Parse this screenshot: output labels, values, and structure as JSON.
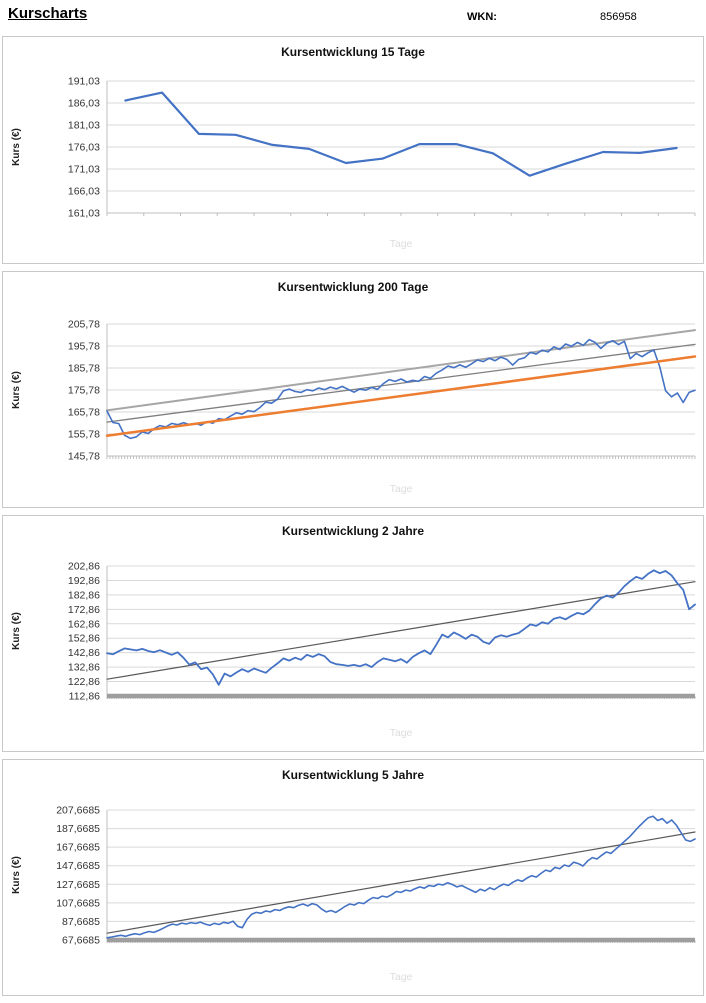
{
  "header": {
    "title": "Kurscharts",
    "wkn_label": "WKN:",
    "wkn_value": "856958"
  },
  "theme": {
    "accent_blue": "#4472C4",
    "trend_orange": "#ED7D31",
    "trend_gray": "#A6A6A6",
    "trend_dark": "#7F7F7F",
    "trendline_dark": "#595959",
    "grid": "#D9D9D9",
    "axis": "#BFBFBF",
    "baseline_gray": "#9E9E9E",
    "watermark": "#DCDCDC"
  },
  "chart_data": [
    {
      "type": "line",
      "title": "Kursentwicklung 15 Tage",
      "xlabel": "Tage",
      "ylabel": "Kurs (€)",
      "ylim": [
        161.03,
        191.03
      ],
      "grid": true,
      "legend": null,
      "y_ticks": [
        {
          "label": "191,03",
          "value": 191.03
        },
        {
          "label": "186,03",
          "value": 186.03
        },
        {
          "label": "181,03",
          "value": 181.03
        },
        {
          "label": "176,03",
          "value": 176.03
        },
        {
          "label": "171,03",
          "value": 171.03
        },
        {
          "label": "166,03",
          "value": 166.03
        },
        {
          "label": "161,03",
          "value": 161.03
        }
      ],
      "x_tick_count": 16,
      "baseline": null,
      "series": [
        {
          "name": "kurs",
          "color": "#4472C4",
          "width": 2.2,
          "centered": true,
          "values": [
            186.6,
            188.4,
            179.0,
            178.8,
            176.5,
            175.6,
            172.4,
            173.4,
            176.7,
            176.7,
            174.6,
            169.5,
            172.3,
            174.9,
            174.7,
            175.8
          ]
        }
      ]
    },
    {
      "type": "line",
      "title": "Kursentwicklung 200 Tage",
      "xlabel": "Tage",
      "ylabel": "Kurs (€)",
      "ylim": [
        145.78,
        205.78
      ],
      "grid": true,
      "legend": null,
      "y_ticks": [
        {
          "label": "205,78",
          "value": 205.78
        },
        {
          "label": "195,78",
          "value": 195.78
        },
        {
          "label": "185,78",
          "value": 185.78
        },
        {
          "label": "175,78",
          "value": 175.78
        },
        {
          "label": "165,78",
          "value": 165.78
        },
        {
          "label": "155,78",
          "value": 155.78
        },
        {
          "label": "145,78",
          "value": 145.78
        }
      ],
      "x_tick_count": 200,
      "baseline": null,
      "series": [
        {
          "name": "trend-oben",
          "color": "#A6A6A6",
          "width": 2,
          "centered": false,
          "values": [
            166.5,
            203.0
          ]
        },
        {
          "name": "trend-mitte",
          "color": "#7F7F7F",
          "width": 1.3,
          "centered": false,
          "values": [
            161.2,
            196.5
          ]
        },
        {
          "name": "kurs",
          "color": "#4472C4",
          "width": 1.6,
          "centered": false,
          "values": [
            166.2,
            161.0,
            160.5,
            155.2,
            153.8,
            154.5,
            156.8,
            156.0,
            158.2,
            159.6,
            159.0,
            160.6,
            160.0,
            160.9,
            160.1,
            160.6,
            159.8,
            161.4,
            160.7,
            162.8,
            162.3,
            163.9,
            165.4,
            164.8,
            166.4,
            165.9,
            167.8,
            170.3,
            169.8,
            171.6,
            175.4,
            176.2,
            175.1,
            174.7,
            175.9,
            175.4,
            176.7,
            175.9,
            177.1,
            176.3,
            177.4,
            176.1,
            174.8,
            176.2,
            175.7,
            176.9,
            176.1,
            178.7,
            180.5,
            179.7,
            180.8,
            179.4,
            180.2,
            179.7,
            181.9,
            181.1,
            183.4,
            184.9,
            186.7,
            185.9,
            187.2,
            186.1,
            187.7,
            189.4,
            188.7,
            190.2,
            189.1,
            190.7,
            189.7,
            187.1,
            189.7,
            190.4,
            192.9,
            192.1,
            193.9,
            193.1,
            195.4,
            194.2,
            196.7,
            195.7,
            197.4,
            196.1,
            198.7,
            197.4,
            194.7,
            197.1,
            198.2,
            196.4,
            197.9,
            190.0,
            192.4,
            190.9,
            192.7,
            194.0,
            186.4,
            175.4,
            172.7,
            174.4,
            170.1,
            174.7,
            175.7
          ]
        },
        {
          "name": "trend-unten",
          "color": "#ED7D31",
          "width": 2.5,
          "centered": false,
          "values": [
            155.0,
            191.0
          ]
        }
      ]
    },
    {
      "type": "line",
      "title": "Kursentwicklung 2 Jahre",
      "xlabel": "Tage",
      "ylabel": "Kurs (€)",
      "ylim": [
        112.86,
        202.86
      ],
      "grid": true,
      "legend": null,
      "y_ticks": [
        {
          "label": "202,86",
          "value": 202.86
        },
        {
          "label": "192,86",
          "value": 192.86
        },
        {
          "label": "182,86",
          "value": 182.86
        },
        {
          "label": "172,86",
          "value": 172.86
        },
        {
          "label": "162,86",
          "value": 162.86
        },
        {
          "label": "152,86",
          "value": 152.86
        },
        {
          "label": "142,86",
          "value": 142.86
        },
        {
          "label": "132,86",
          "value": 132.86
        },
        {
          "label": "122,86",
          "value": 122.86
        },
        {
          "label": "112,86",
          "value": 112.86
        }
      ],
      "x_tick_count": 250,
      "baseline": {
        "value": 112.86,
        "color": "#9E9E9E",
        "width": 4.5
      },
      "series": [
        {
          "name": "trend",
          "color": "#595959",
          "width": 1.2,
          "centered": false,
          "values": [
            124.5,
            192.0
          ]
        },
        {
          "name": "kurs",
          "color": "#4472C4",
          "width": 1.8,
          "centered": false,
          "values": [
            142.4,
            141.7,
            143.9,
            145.8,
            145.1,
            144.4,
            145.5,
            144.0,
            143.2,
            144.6,
            143.0,
            141.4,
            143.1,
            139.4,
            134.6,
            136.1,
            131.4,
            132.6,
            127.9,
            120.6,
            128.4,
            126.4,
            129.1,
            131.4,
            129.6,
            131.9,
            130.4,
            128.9,
            132.4,
            135.4,
            138.9,
            137.4,
            139.4,
            137.9,
            141.4,
            139.9,
            141.9,
            140.4,
            136.4,
            134.9,
            134.4,
            133.7,
            134.4,
            133.4,
            134.9,
            132.9,
            136.4,
            138.9,
            137.9,
            136.9,
            138.4,
            135.9,
            139.9,
            142.4,
            144.4,
            141.9,
            148.4,
            155.4,
            153.4,
            156.9,
            154.9,
            152.4,
            155.4,
            153.9,
            150.4,
            148.9,
            153.4,
            154.9,
            153.9,
            155.4,
            156.4,
            159.4,
            162.4,
            161.4,
            163.9,
            162.9,
            166.4,
            167.4,
            165.9,
            168.4,
            170.4,
            169.4,
            171.9,
            176.4,
            180.4,
            182.4,
            180.9,
            184.4,
            188.9,
            192.4,
            195.4,
            193.9,
            197.4,
            199.9,
            197.9,
            199.4,
            196.4,
            190.9,
            186.4,
            172.9,
            176.2
          ]
        }
      ]
    },
    {
      "type": "line",
      "title": "Kursentwicklung 5 Jahre",
      "xlabel": "Tage",
      "ylabel": "Kurs (€)",
      "ylim": [
        67.6685,
        207.6685
      ],
      "grid": true,
      "legend": null,
      "y_ticks": [
        {
          "label": "207,6685",
          "value": 207.6685
        },
        {
          "label": "187,6685",
          "value": 187.6685
        },
        {
          "label": "167,6685",
          "value": 167.6685
        },
        {
          "label": "147,6685",
          "value": 147.6685
        },
        {
          "label": "127,6685",
          "value": 127.6685
        },
        {
          "label": "107,6685",
          "value": 107.6685
        },
        {
          "label": "87,6685",
          "value": 87.6685
        },
        {
          "label": "67,6685",
          "value": 67.6685
        }
      ],
      "x_tick_count": 250,
      "baseline": {
        "value": 67.6685,
        "color": "#9E9E9E",
        "width": 4.5
      },
      "series": [
        {
          "name": "trend",
          "color": "#595959",
          "width": 1.2,
          "centered": false,
          "values": [
            75.0,
            184.0
          ]
        },
        {
          "name": "kurs",
          "color": "#4472C4",
          "width": 1.6,
          "centered": false,
          "values": [
            70.0,
            70.9,
            71.9,
            72.7,
            71.7,
            73.3,
            74.5,
            73.5,
            75.3,
            76.8,
            75.8,
            77.8,
            80.3,
            82.8,
            84.8,
            83.8,
            85.9,
            84.9,
            86.4,
            85.4,
            86.9,
            84.9,
            83.4,
            85.7,
            84.4,
            86.7,
            85.7,
            87.9,
            82.4,
            80.9,
            89.9,
            95.4,
            97.4,
            96.4,
            98.9,
            97.9,
            100.4,
            99.4,
            101.9,
            103.4,
            102.4,
            104.9,
            106.4,
            104.4,
            106.9,
            105.4,
            100.9,
            97.9,
            99.4,
            97.4,
            100.4,
            103.9,
            106.4,
            105.4,
            107.9,
            106.9,
            110.4,
            113.4,
            112.4,
            114.9,
            113.9,
            116.4,
            119.9,
            118.9,
            121.4,
            120.4,
            122.9,
            124.9,
            123.4,
            126.4,
            125.4,
            127.9,
            126.9,
            129.4,
            127.4,
            124.9,
            126.4,
            123.9,
            121.4,
            118.9,
            122.4,
            120.4,
            123.9,
            121.9,
            125.4,
            127.9,
            126.4,
            129.9,
            132.4,
            130.9,
            134.4,
            136.9,
            135.4,
            139.4,
            142.9,
            141.4,
            145.9,
            144.4,
            148.4,
            146.9,
            151.4,
            149.9,
            147.4,
            152.9,
            156.4,
            154.9,
            158.9,
            162.4,
            160.9,
            165.4,
            169.9,
            174.4,
            178.9,
            184.4,
            189.9,
            194.9,
            199.4,
            201.0,
            196.4,
            198.4,
            193.4,
            196.9,
            191.4,
            183.4,
            175.4,
            173.9,
            176.4
          ]
        }
      ]
    }
  ]
}
